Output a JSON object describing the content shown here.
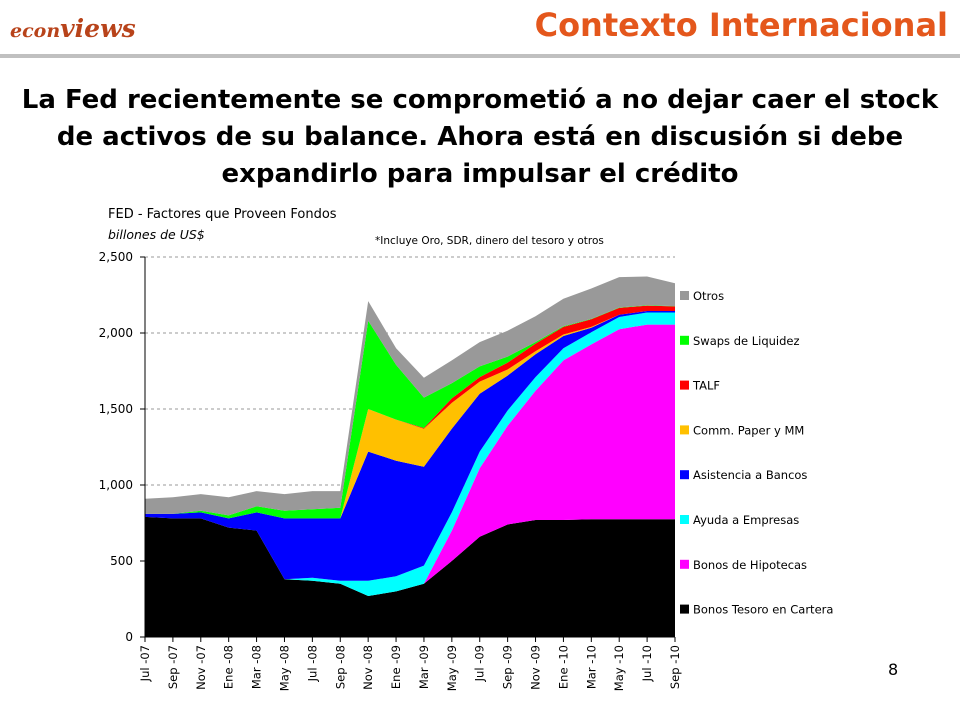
{
  "header": {
    "brand_part1": "econ",
    "brand_part2": "views",
    "title": "Contexto Internacional"
  },
  "headline": "La Fed recientemente se comprometió a no dejar caer el stock de activos de su balance. Ahora está en discusión si debe expandirlo para impulsar el crédito",
  "page_number": "8",
  "colors": {
    "brand": "#b8431a",
    "header_title": "#e4571c"
  },
  "chart_data": {
    "type": "area",
    "stacked": true,
    "title": "FED - Factores que Proveen Fondos",
    "subtitle": "billones de US$",
    "note": "*Incluye Oro, SDR, dinero del tesoro y otros",
    "ylim": [
      0,
      2500
    ],
    "yticks": [
      0,
      500,
      1000,
      1500,
      2000,
      2500
    ],
    "ytick_labels": [
      "0",
      "500",
      "1,000",
      "1,500",
      "2,000",
      "2,500"
    ],
    "grid": "horizontal dashed",
    "legend_position": "right",
    "x": [
      "Jul -07",
      "Sep -07",
      "Nov -07",
      "Ene -08",
      "Mar -08",
      "May -08",
      "Jul -08",
      "Sep -08",
      "Nov -08",
      "Ene -09",
      "Mar -09",
      "May -09",
      "Jul -09",
      "Sep -09",
      "Nov -09",
      "Ene -10",
      "Mar -10",
      "May -10",
      "Jul -10",
      "Sep -10"
    ],
    "series": [
      {
        "name": "Bonos Tesoro en Cartera",
        "color": "#000000",
        "values": [
          790,
          780,
          780,
          720,
          700,
          380,
          370,
          350,
          270,
          300,
          350,
          500,
          660,
          740,
          770,
          770,
          775,
          775,
          775,
          775
        ]
      },
      {
        "name": "Bonos de Hipotecas",
        "color": "#ff00ff",
        "values": [
          0,
          0,
          0,
          0,
          0,
          0,
          0,
          0,
          0,
          0,
          0,
          200,
          450,
          650,
          850,
          1050,
          1150,
          1250,
          1280,
          1280
        ]
      },
      {
        "name": "Ayuda a Empresas",
        "color": "#00ffff",
        "values": [
          0,
          0,
          0,
          0,
          0,
          0,
          20,
          20,
          100,
          100,
          120,
          120,
          110,
          100,
          90,
          80,
          80,
          80,
          80,
          80
        ]
      },
      {
        "name": "Asistencia a Bancos",
        "color": "#0000ff",
        "values": [
          20,
          30,
          40,
          60,
          120,
          400,
          390,
          410,
          850,
          760,
          650,
          550,
          380,
          230,
          150,
          80,
          30,
          15,
          10,
          10
        ]
      },
      {
        "name": "Comm. Paper y MM",
        "color": "#ffc000",
        "values": [
          0,
          0,
          0,
          0,
          0,
          0,
          0,
          0,
          280,
          270,
          250,
          170,
          80,
          40,
          20,
          10,
          5,
          0,
          0,
          0
        ]
      },
      {
        "name": "TALF",
        "color": "#ff0000",
        "values": [
          0,
          0,
          0,
          0,
          0,
          0,
          0,
          0,
          0,
          0,
          5,
          30,
          30,
          45,
          50,
          50,
          50,
          45,
          35,
          30
        ]
      },
      {
        "name": "Swaps de Liquidez",
        "color": "#00ff00",
        "values": [
          0,
          0,
          10,
          20,
          40,
          50,
          60,
          70,
          580,
          360,
          200,
          100,
          70,
          40,
          10,
          5,
          3,
          3,
          2,
          2
        ]
      },
      {
        "name": "Otros",
        "color": "#999999",
        "values": [
          100,
          110,
          110,
          120,
          100,
          110,
          120,
          110,
          130,
          110,
          130,
          150,
          160,
          170,
          170,
          180,
          200,
          200,
          190,
          150
        ]
      }
    ],
    "legend_order": [
      "Otros",
      "Swaps de Liquidez",
      "TALF",
      "Comm. Paper y MM",
      "Asistencia a Bancos",
      "Ayuda a Empresas",
      "Bonos de Hipotecas",
      "Bonos Tesoro en Cartera"
    ]
  }
}
